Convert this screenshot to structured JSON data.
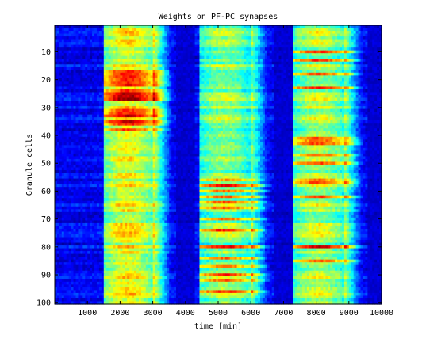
{
  "chart_data": {
    "type": "heatmap",
    "title": "Weights on PF-PC synapses",
    "xlabel": "time [min]",
    "ylabel": "Granule cells",
    "xlim": [
      0,
      10000
    ],
    "ylim": [
      1,
      100
    ],
    "y_reversed": true,
    "x_ticks": [
      1000,
      2000,
      3000,
      4000,
      5000,
      6000,
      7000,
      8000,
      9000,
      10000
    ],
    "y_ticks": [
      10,
      20,
      30,
      40,
      50,
      60,
      70,
      80,
      90,
      100
    ],
    "n_rows": 100,
    "n_cols": 140,
    "colormap": "jet",
    "colormap_stops": [
      "#00008f",
      "#0000ff",
      "#00ffff",
      "#ffff00",
      "#ff0000",
      "#800000"
    ],
    "active_time_windows": [
      {
        "start": 1500,
        "end": 3000,
        "hotspot_rows": [
          17,
          18,
          19,
          20,
          21,
          22,
          24,
          25,
          26,
          27,
          31,
          32,
          33,
          35,
          36,
          38
        ],
        "level": 0.62
      },
      {
        "start": 4400,
        "end": 6000,
        "hotspot_rows": [
          56,
          58,
          60,
          62,
          64,
          66,
          70,
          74,
          80,
          84,
          87,
          90,
          92,
          96
        ],
        "level": 0.52
      },
      {
        "start": 7300,
        "end": 8850,
        "hotspot_rows": [
          10,
          13,
          18,
          23,
          41,
          42,
          43,
          47,
          50,
          56,
          57,
          62,
          80,
          85
        ],
        "level": 0.55
      }
    ],
    "grid": false
  }
}
